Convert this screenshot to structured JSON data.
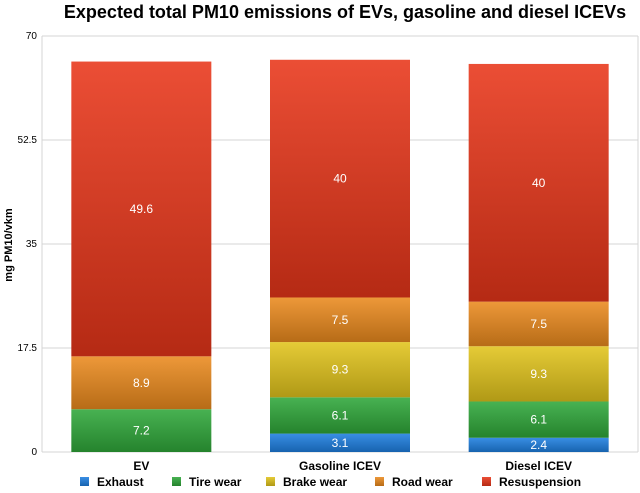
{
  "chart_data": {
    "type": "bar",
    "stacked": true,
    "title": "Expected total PM10 emissions of EVs, gasoline and diesel ICEVs",
    "ylabel": "mg PM10/vkm",
    "xlabel": "",
    "ylim": [
      0,
      70
    ],
    "yticks": [
      "0",
      "17.5",
      "35",
      "52.5",
      "70"
    ],
    "categories": [
      "EV",
      "Gasoline ICEV",
      "Diesel ICEV"
    ],
    "series": [
      {
        "name": "Exhaust",
        "color": "#1e7fe0",
        "values": [
          0,
          3.1,
          2.4
        ],
        "labels": [
          "",
          "3.1",
          "2.4"
        ]
      },
      {
        "name": "Tire wear",
        "color": "#2fa83a",
        "values": [
          7.2,
          6.1,
          6.1
        ],
        "labels": [
          "7.2",
          "6.1",
          "6.1"
        ]
      },
      {
        "name": "Brake wear",
        "color": "#e2c41c",
        "values": [
          0,
          9.3,
          9.3
        ],
        "labels": [
          "",
          "9.3",
          "9.3"
        ]
      },
      {
        "name": "Road wear",
        "color": "#ea8a1e",
        "values": [
          8.9,
          7.5,
          7.5
        ],
        "labels": [
          "8.9",
          "7.5",
          "7.5"
        ]
      },
      {
        "name": "Resuspension",
        "color": "#e8361a",
        "values": [
          49.6,
          40,
          40
        ],
        "labels": [
          "49.6",
          "40",
          "40"
        ]
      }
    ],
    "grid": true,
    "legend_position": "bottom"
  }
}
